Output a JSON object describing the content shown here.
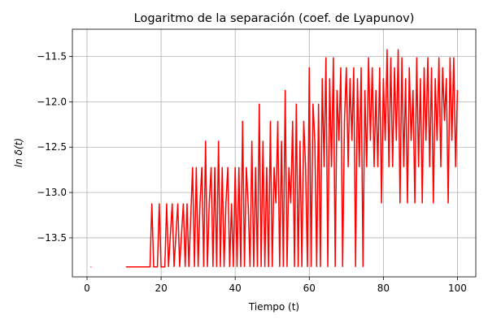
{
  "chart_data": {
    "type": "line",
    "title": "Logaritmo de la separación (coef. de Lyapunov)",
    "xlabel": "Tiempo (t)",
    "ylabel": "ln δ(t)",
    "grid": true,
    "xlim": [
      -3.95,
      104.95
    ],
    "ylim": [
      -13.93,
      -11.2
    ],
    "xticks": [
      0,
      20,
      40,
      60,
      80,
      100
    ],
    "yticks": [
      {
        "value": -13.5,
        "label": "−13.5"
      },
      {
        "value": -13,
        "label": "−13.0"
      },
      {
        "value": -12.5,
        "label": "−12.5"
      },
      {
        "value": -12,
        "label": "−12.0"
      },
      {
        "value": -11.5,
        "label": "−11.5"
      }
    ],
    "x": [
      1,
      5,
      10.5,
      17,
      17.5,
      18,
      19,
      19.5,
      20,
      21,
      21.5,
      22,
      23,
      23.5,
      24.5,
      25,
      26,
      26.5,
      27,
      27.5,
      28.5,
      29,
      29.5,
      30,
      30.5,
      31,
      31.5,
      32,
      32.5,
      33,
      33.5,
      34,
      34.5,
      35,
      35.5,
      36,
      36.5,
      37,
      37.5,
      38,
      38.5,
      39,
      39.5,
      40,
      40.5,
      41,
      41.5,
      42,
      42.5,
      43,
      43.5,
      44,
      44.5,
      45,
      45.5,
      46,
      46.5,
      47,
      47.5,
      48,
      48.5,
      49,
      49.5,
      50,
      50.5,
      51,
      51.5,
      52,
      52.5,
      53,
      53.5,
      54,
      54.5,
      55,
      55.5,
      56,
      56.5,
      57,
      57.5,
      58,
      58.5,
      59,
      59.5,
      60,
      60.5,
      61,
      61.5,
      62,
      62.5,
      63,
      63.5,
      64,
      64.5,
      65,
      65.5,
      66,
      66.5,
      67,
      67.5,
      68,
      68.5,
      69,
      69.5,
      70,
      70.5,
      71,
      71.5,
      72,
      72.5,
      73,
      73.5,
      74,
      74.5,
      75,
      75.5,
      76,
      76.5,
      77,
      77.5,
      78,
      78.5,
      79,
      79.5,
      80,
      80.5,
      81,
      81.5,
      82,
      82.5,
      83,
      83.5,
      84,
      84.5,
      85,
      85.5,
      86,
      86.5,
      87,
      87.5,
      88,
      88.5,
      89,
      89.5,
      90,
      90.5,
      91,
      91.5,
      92,
      92.5,
      93,
      93.5,
      94,
      94.5,
      95,
      95.5,
      96,
      96.5,
      97,
      97.5,
      98,
      98.5,
      99,
      99.5,
      100
    ],
    "series": [
      {
        "color": "#ff0000",
        "values": [
          -13.82,
          null,
          -13.82,
          -13.82,
          -13.12,
          -13.82,
          -13.82,
          -13.12,
          -13.82,
          -13.82,
          -13.12,
          -13.82,
          -13.12,
          -13.82,
          -13.12,
          -13.82,
          -13.12,
          -13.82,
          -13.12,
          -13.82,
          -12.72,
          -13.82,
          -12.72,
          -13.82,
          -13.12,
          -12.72,
          -13.82,
          -12.43,
          -13.82,
          -13.12,
          -12.72,
          -13.82,
          -12.72,
          -13.82,
          -12.43,
          -13.82,
          -12.72,
          -13.82,
          -13.12,
          -12.72,
          -13.82,
          -13.12,
          -13.82,
          -12.72,
          -13.82,
          -12.72,
          -13.82,
          -12.21,
          -13.82,
          -12.72,
          -13.12,
          -13.82,
          -12.43,
          -13.82,
          -12.72,
          -13.82,
          -12.02,
          -13.82,
          -12.43,
          -13.82,
          -12.72,
          -13.82,
          -12.21,
          -13.82,
          -12.72,
          -13.12,
          -12.21,
          -13.82,
          -12.43,
          -13.82,
          -11.87,
          -13.82,
          -12.72,
          -13.12,
          -12.21,
          -13.82,
          -12.02,
          -13.82,
          -12.43,
          -13.82,
          -12.21,
          -12.72,
          -13.82,
          -11.62,
          -13.82,
          -12.02,
          -12.43,
          -13.82,
          -12.02,
          -13.82,
          -11.74,
          -12.72,
          -11.51,
          -13.82,
          -11.74,
          -12.72,
          -11.51,
          -13.82,
          -11.87,
          -12.43,
          -11.62,
          -13.82,
          -12.21,
          -11.62,
          -12.72,
          -11.74,
          -12.43,
          -11.62,
          -13.82,
          -11.74,
          -12.72,
          -11.62,
          -13.82,
          -11.87,
          -12.72,
          -11.51,
          -12.43,
          -11.62,
          -12.72,
          -11.87,
          -12.72,
          -11.62,
          -13.12,
          -11.74,
          -12.43,
          -11.42,
          -12.72,
          -11.51,
          -12.72,
          -11.62,
          -12.43,
          -11.42,
          -13.12,
          -11.51,
          -12.72,
          -11.74,
          -13.12,
          -11.62,
          -12.43,
          -11.87,
          -13.12,
          -11.51,
          -12.72,
          -11.74,
          -13.12,
          -11.62,
          -12.43,
          -11.51,
          -12.72,
          -11.62,
          -13.12,
          -11.74,
          -12.43,
          -11.51,
          -12.72,
          -11.62,
          -12.21,
          -11.74,
          -13.12,
          -11.51,
          -12.43,
          -11.51,
          -12.72,
          -11.87
        ]
      }
    ]
  }
}
